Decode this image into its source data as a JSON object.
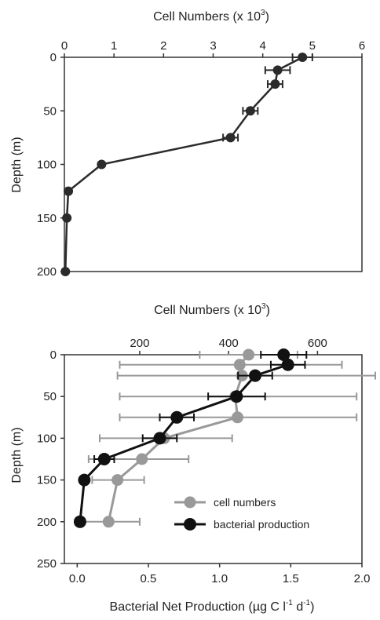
{
  "chart_data": [
    {
      "type": "line",
      "top_axis_label": "Cell Numbers (x 10",
      "top_axis_label_sup": "3",
      "top_axis_label_tail": ")",
      "ylabel": "Depth (m)",
      "xlim": [
        0,
        6
      ],
      "ylim": [
        0,
        200
      ],
      "x_ticks": [
        0,
        1,
        2,
        3,
        4,
        5,
        6
      ],
      "x_tick_labels": [
        "0",
        "1",
        "2",
        "3",
        "4",
        "5",
        "6"
      ],
      "y_ticks": [
        0,
        50,
        100,
        150,
        200
      ],
      "y_tick_labels": [
        "0",
        "50",
        "100",
        "150",
        "200"
      ],
      "grid": false,
      "series": [
        {
          "color": "#2b2b2b",
          "points": [
            {
              "x": 4.8,
              "y": 0,
              "err": 0.2
            },
            {
              "x": 4.3,
              "y": 12,
              "err": 0.25
            },
            {
              "x": 4.25,
              "y": 25,
              "err": 0.15
            },
            {
              "x": 3.75,
              "y": 50,
              "err": 0.15
            },
            {
              "x": 3.35,
              "y": 75,
              "err": 0.15
            },
            {
              "x": 0.75,
              "y": 100,
              "err": 0
            },
            {
              "x": 0.08,
              "y": 125,
              "err": 0
            },
            {
              "x": 0.05,
              "y": 150,
              "err": 0
            },
            {
              "x": 0.02,
              "y": 200,
              "err": 0
            }
          ]
        }
      ]
    },
    {
      "type": "line",
      "top_axis_label": "Cell Numbers (x 10",
      "top_axis_label_sup": "3",
      "top_axis_label_tail": ")",
      "bottom_axis_label_main": "Bacterial Net Production (µg C l",
      "bottom_axis_label_sup1": "-1",
      "bottom_axis_label_mid": " d",
      "bottom_axis_label_sup2": "-1",
      "bottom_axis_label_tail": ")",
      "ylabel": "Depth (m)",
      "top_xlim": [
        30.5,
        700
      ],
      "top_x_ticks": [
        200,
        400,
        600
      ],
      "top_x_tick_labels": [
        "200",
        "400",
        "600"
      ],
      "bottom_xlim": [
        -0.09,
        2.0
      ],
      "bottom_x_ticks": [
        0.0,
        0.5,
        1.0,
        1.5,
        2.0
      ],
      "bottom_x_tick_labels": [
        "0.0",
        "0.5",
        "1.0",
        "1.5",
        "2.0"
      ],
      "ylim": [
        0,
        250
      ],
      "y_ticks": [
        0,
        50,
        100,
        150,
        200,
        250
      ],
      "y_tick_labels": [
        "0",
        "50",
        "100",
        "150",
        "200",
        "250"
      ],
      "grid": false,
      "legend_position": "bottom-right",
      "series": [
        {
          "name": "cell numbers",
          "axis": "top",
          "color": "#999999",
          "points": [
            {
              "x": 445,
              "y": 0,
              "err_low": 335,
              "err_high": 555
            },
            {
              "x": 425,
              "y": 12,
              "err_low": 155,
              "err_high": 655
            },
            {
              "x": 430,
              "y": 25,
              "err_low": 150,
              "err_high": 730
            },
            {
              "x": 415,
              "y": 50,
              "err_low": 155,
              "err_high": 688
            },
            {
              "x": 420,
              "y": 75,
              "err_low": 155,
              "err_high": 688
            },
            {
              "x": 255,
              "y": 100,
              "err_low": 110,
              "err_high": 408
            },
            {
              "x": 205,
              "y": 125,
              "err_low": 85,
              "err_high": 310
            },
            {
              "x": 150,
              "y": 150,
              "err_low": 93,
              "err_high": 210
            },
            {
              "x": 130,
              "y": 200,
              "err_low": 55,
              "err_high": 200
            }
          ]
        },
        {
          "name": "bacterial production",
          "axis": "bottom",
          "color": "#111111",
          "points": [
            {
              "x": 1.45,
              "y": 0,
              "err": 0.16
            },
            {
              "x": 1.48,
              "y": 12,
              "err": 0.12
            },
            {
              "x": 1.25,
              "y": 25,
              "err": 0.12
            },
            {
              "x": 1.12,
              "y": 50,
              "err": 0.2
            },
            {
              "x": 0.7,
              "y": 75,
              "err": 0.12
            },
            {
              "x": 0.58,
              "y": 100,
              "err": 0.12
            },
            {
              "x": 0.19,
              "y": 125,
              "err": 0.07
            },
            {
              "x": 0.05,
              "y": 150,
              "err": 0
            },
            {
              "x": 0.02,
              "y": 200,
              "err": 0
            }
          ]
        }
      ]
    }
  ]
}
